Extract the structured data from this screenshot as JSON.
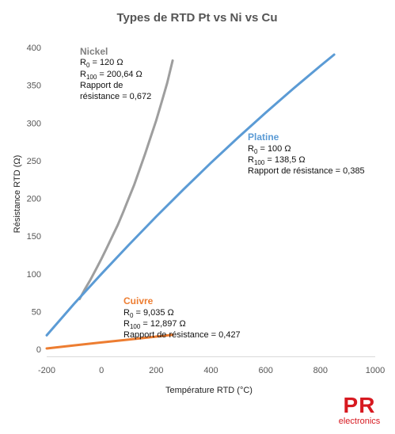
{
  "chart_data": {
    "type": "line",
    "title": "Types de RTD Pt vs Ni vs Cu",
    "xlabel": "Température RTD (°C)",
    "ylabel": "Résistance RTD  (Ω)",
    "xlim": [
      -200,
      1000
    ],
    "ylim": [
      0,
      400
    ],
    "xticks": [
      "-200",
      "0",
      "200",
      "400",
      "600",
      "800",
      "1000"
    ],
    "yticks": [
      "0",
      "50",
      "100",
      "150",
      "200",
      "250",
      "300",
      "350",
      "400"
    ],
    "grid": false,
    "legend": "none",
    "series": [
      {
        "name": "Nickel",
        "color": "#9e9e9e",
        "x": [
          -80,
          -60,
          -40,
          -20,
          0,
          20,
          40,
          60,
          80,
          100,
          120,
          140,
          160,
          180,
          200,
          220,
          240,
          260
        ],
        "y": [
          66.6,
          79.9,
          92.3,
          106.1,
          120.0,
          134.8,
          149.9,
          165.0,
          182.3,
          200.6,
          218.5,
          238.9,
          259.6,
          281.5,
          303.2,
          328.0,
          353.0,
          382.8
        ]
      },
      {
        "name": "Platine",
        "color": "#5b9bd5",
        "x": [
          -200,
          -100,
          0,
          100,
          200,
          300,
          400,
          500,
          600,
          700,
          800,
          850
        ],
        "y": [
          18.5,
          60.3,
          100.0,
          138.5,
          175.9,
          212.0,
          247.1,
          280.9,
          313.7,
          345.3,
          375.7,
          390.5
        ]
      },
      {
        "name": "Cuivre",
        "color": "#ed7d31",
        "x": [
          -200,
          -100,
          0,
          100,
          200,
          260
        ],
        "y": [
          1.1,
          5.1,
          9.035,
          12.897,
          16.8,
          19.2
        ]
      }
    ],
    "annotations": {
      "nickel": {
        "title": "Nickel",
        "r0": "R",
        "r0_sub": "0",
        "r0_val": " = 120 Ω",
        "r100": "R",
        "r100_sub": "100",
        "r100_val": " = 200,64 Ω",
        "ratio_line1": "Rapport de",
        "ratio_line2": "résistance = 0,672",
        "color": "#7f7f7f"
      },
      "platine": {
        "title": "Platine",
        "r0": "R",
        "r0_sub": "0",
        "r0_val": " = 100 Ω",
        "r100": "R",
        "r100_sub": "100",
        "r100_val": " = 138,5 Ω",
        "ratio": "Rapport de résistance = 0,385",
        "color": "#5b9bd5"
      },
      "cuivre": {
        "title": "Cuivre",
        "r0": "R",
        "r0_sub": "0",
        "r0_val": " = 9,035 Ω",
        "r100": "R",
        "r100_sub": "100",
        "r100_val": " = 12,897 Ω",
        "ratio": "Rapport de résistance = 0,427",
        "color": "#ed7d31"
      }
    }
  },
  "logo": {
    "mark": "PR",
    "text": "electronics",
    "color": "#d71920"
  }
}
